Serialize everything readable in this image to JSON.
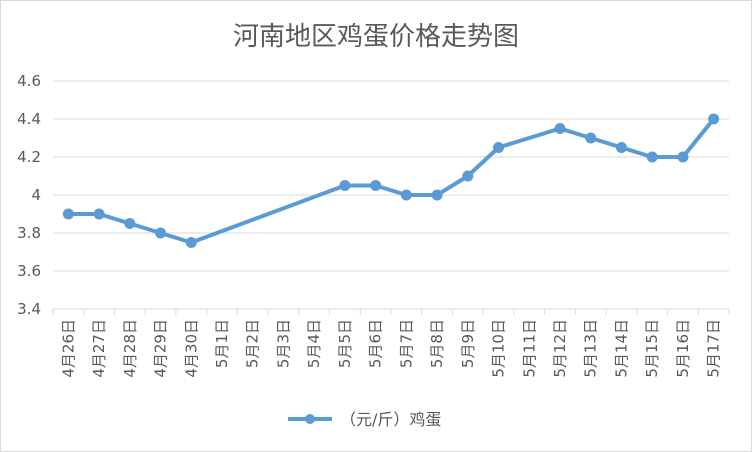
{
  "chart_data": {
    "type": "line",
    "title": "河南地区鸡蛋价格走势图",
    "categories": [
      "4月26日",
      "4月27日",
      "4月28日",
      "4月29日",
      "4月30日",
      "5月1日",
      "5月2日",
      "5月3日",
      "5月4日",
      "5月5日",
      "5月6日",
      "5月7日",
      "5月8日",
      "5月9日",
      "5月10日",
      "5月11日",
      "5月12日",
      "5月13日",
      "5月14日",
      "5月15日",
      "5月16日",
      "5月17日"
    ],
    "series": [
      {
        "name": "（元/斤）鸡蛋",
        "color": "#5b9bd5",
        "values": [
          3.9,
          3.9,
          3.85,
          3.8,
          3.75,
          null,
          null,
          null,
          null,
          4.05,
          4.05,
          4.0,
          4.0,
          4.1,
          4.25,
          null,
          4.35,
          4.3,
          4.25,
          4.2,
          4.2,
          4.4
        ]
      }
    ],
    "ylim": [
      3.4,
      4.6
    ],
    "yticks": [
      "3.4",
      "3.6",
      "3.8",
      "4",
      "4.2",
      "4.4",
      "4.6"
    ],
    "grid": true,
    "legend": "bottom"
  }
}
